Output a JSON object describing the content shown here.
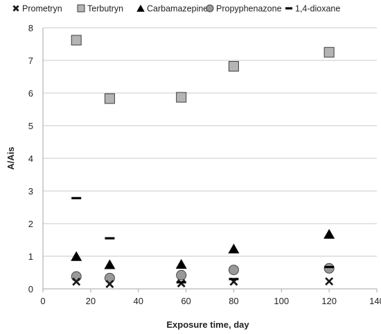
{
  "chart_data": {
    "type": "scatter",
    "title": "",
    "xlabel": "Exposure time, day",
    "ylabel": "A/Ais",
    "xlim": [
      0,
      140
    ],
    "ylim": [
      0,
      8
    ],
    "xticks": [
      0,
      20,
      40,
      60,
      80,
      100,
      120,
      140
    ],
    "yticks": [
      0,
      1,
      2,
      3,
      4,
      5,
      6,
      7,
      8
    ],
    "grid": "horizontal",
    "legend_position": "top",
    "series": [
      {
        "name": "Prometryn",
        "marker": "x",
        "color": "#1a1a1a",
        "x": [
          14,
          28,
          58,
          80,
          120
        ],
        "y": [
          0.22,
          0.15,
          0.17,
          0.22,
          0.23
        ]
      },
      {
        "name": "Terbutryn",
        "marker": "square",
        "color": "#b4b4b4",
        "x": [
          14,
          28,
          58,
          80,
          120
        ],
        "y": [
          7.62,
          5.83,
          5.87,
          6.82,
          7.25
        ]
      },
      {
        "name": "Carbamazepine",
        "marker": "triangle",
        "color": "#000000",
        "x": [
          14,
          28,
          58,
          80,
          120
        ],
        "y": [
          0.97,
          0.72,
          0.73,
          1.2,
          1.65
        ]
      },
      {
        "name": "Propyphenazone",
        "marker": "circle",
        "color": "#999999",
        "x": [
          14,
          28,
          58,
          80,
          120
        ],
        "y": [
          0.38,
          0.33,
          0.42,
          0.58,
          0.63
        ]
      },
      {
        "name": "1,4-dioxane",
        "marker": "dash",
        "color": "#000000",
        "x": [
          14,
          28,
          58,
          80,
          120
        ],
        "y": [
          2.78,
          1.55,
          0.2,
          0.3,
          0.67
        ]
      }
    ]
  }
}
